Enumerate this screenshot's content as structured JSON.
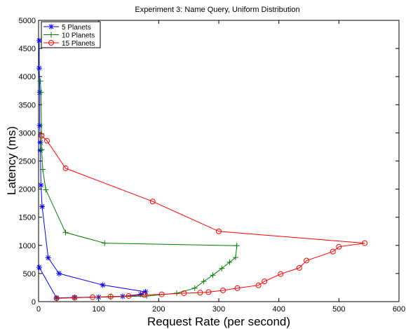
{
  "chart_data": {
    "type": "line",
    "title": "Experiment 3: Name Query, Uniform Distribution",
    "xlabel": "Request Rate (per second)",
    "ylabel": "Latency (ms)",
    "xlim": [
      0,
      600
    ],
    "ylim": [
      0,
      5000
    ],
    "xticks": [
      "0",
      "100",
      "200",
      "300",
      "400",
      "500",
      "600"
    ],
    "yticks": [
      "0",
      "500",
      "1000",
      "1500",
      "2000",
      "2500",
      "3000",
      "3500",
      "4000",
      "4500",
      "5000"
    ],
    "grid": false,
    "legend_position": "top-left",
    "series": [
      {
        "name": "5 Planets",
        "color": "#0000ff",
        "marker": "asterisk",
        "points": [
          [
            1,
            4640
          ],
          [
            1,
            4150
          ],
          [
            2,
            3720
          ],
          [
            2,
            3130
          ],
          [
            3,
            2830
          ],
          [
            3,
            2690
          ],
          [
            4,
            2070
          ],
          [
            6,
            1690
          ],
          [
            16,
            780
          ],
          [
            34,
            500
          ],
          [
            107,
            295
          ],
          [
            178,
            175
          ],
          [
            170,
            130
          ],
          [
            140,
            95
          ],
          [
            100,
            80
          ],
          [
            60,
            75
          ],
          [
            30,
            65
          ],
          [
            1,
            610
          ]
        ]
      },
      {
        "name": "10 Planets",
        "color": "#008000",
        "marker": "plus",
        "points": [
          [
            3,
            3920
          ],
          [
            4,
            3720
          ],
          [
            5,
            2980
          ],
          [
            5,
            2700
          ],
          [
            7,
            2350
          ],
          [
            12,
            1990
          ],
          [
            45,
            1230
          ],
          [
            110,
            1040
          ],
          [
            330,
            995
          ],
          [
            328,
            785
          ],
          [
            318,
            700
          ],
          [
            305,
            590
          ],
          [
            290,
            470
          ],
          [
            275,
            360
          ],
          [
            260,
            240
          ],
          [
            230,
            150
          ],
          [
            180,
            100
          ],
          [
            120,
            85
          ],
          [
            60,
            70
          ],
          [
            30,
            60
          ]
        ]
      },
      {
        "name": "15 Planets",
        "color": "#ff0000",
        "marker": "circle",
        "points": [
          [
            5,
            2950
          ],
          [
            14,
            2860
          ],
          [
            45,
            2370
          ],
          [
            190,
            1780
          ],
          [
            300,
            1250
          ],
          [
            543,
            1040
          ],
          [
            500,
            975
          ],
          [
            490,
            890
          ],
          [
            446,
            730
          ],
          [
            434,
            600
          ],
          [
            403,
            490
          ],
          [
            376,
            360
          ],
          [
            366,
            290
          ],
          [
            331,
            240
          ],
          [
            307,
            200
          ],
          [
            283,
            170
          ],
          [
            269,
            160
          ],
          [
            242,
            150
          ],
          [
            205,
            130
          ],
          [
            176,
            120
          ],
          [
            150,
            100
          ],
          [
            120,
            90
          ],
          [
            90,
            80
          ],
          [
            60,
            70
          ],
          [
            30,
            60
          ]
        ]
      }
    ]
  }
}
